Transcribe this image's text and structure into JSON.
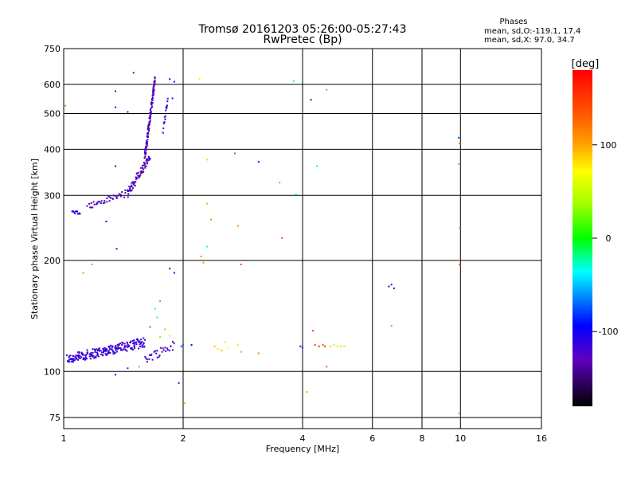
{
  "chart_data": {
    "type": "scatter",
    "title": "Tromsø 20161203 05:26:00-05:27:43",
    "subtitle": "RwPretec (Bp)",
    "stats": {
      "heading": "Phases",
      "line1": "mean, sd,O:-119.1, 17.4",
      "line2": "mean, sd,X:  97.0, 34.7"
    },
    "xlabel": "Frequency [MHz]",
    "ylabel": "Stationary phase Virtual Height [km]",
    "xscale": "log",
    "yscale": "log",
    "xlim": [
      1,
      16
    ],
    "ylim": [
      70,
      750
    ],
    "xticks": [
      1,
      2,
      4,
      6,
      8,
      10,
      16
    ],
    "xtick_labels": [
      "1",
      "2",
      "4",
      "6",
      "8",
      "10",
      "16"
    ],
    "yticks": [
      75,
      100,
      200,
      300,
      400,
      500,
      600,
      750
    ],
    "ytick_labels": [
      "75",
      "100",
      "200",
      "300",
      "400",
      "500",
      "600",
      "750"
    ],
    "grid": true,
    "colorbar": {
      "label": "[deg]",
      "range": [
        -180,
        180
      ],
      "ticks": [
        100,
        0,
        -100
      ],
      "tick_labels": [
        "100",
        "0",
        "-100"
      ]
    },
    "series": [
      {
        "marker": "dot",
        "traces": [
          {
            "x_start": 1.02,
            "x_end": 1.6,
            "y_start": 108,
            "y_end": 120,
            "n": 220,
            "phase": -115,
            "spread_y": 0.03
          },
          {
            "x_start": 1.6,
            "x_end": 1.9,
            "y_start": 108,
            "y_end": 118,
            "n": 30,
            "phase": -120,
            "spread_y": 0.03
          },
          {
            "x_start": 1.05,
            "x_end": 1.1,
            "y_start": 270,
            "y_end": 270,
            "n": 12,
            "phase": -110,
            "spread_y": 0.01
          },
          {
            "x_start": 1.15,
            "x_end": 1.45,
            "y_start": 280,
            "y_end": 305,
            "n": 40,
            "phase": -125,
            "spread_y": 0.02
          },
          {
            "x_start": 1.45,
            "x_end": 1.65,
            "y_start": 305,
            "y_end": 380,
            "n": 70,
            "phase": -130,
            "spread_y": 0.03
          },
          {
            "x_start": 1.6,
            "x_end": 1.7,
            "y_start": 380,
            "y_end": 620,
            "n": 120,
            "phase": -130,
            "spread_y": 0.03
          },
          {
            "x_start": 1.78,
            "x_end": 1.83,
            "y_start": 450,
            "y_end": 550,
            "n": 15,
            "phase": -120,
            "spread_y": 0.02
          }
        ],
        "points": [
          {
            "x": 1.35,
            "y": 575,
            "phase": -125
          },
          {
            "x": 1.35,
            "y": 520,
            "phase": -90
          },
          {
            "x": 1.45,
            "y": 505,
            "phase": -120
          },
          {
            "x": 1.35,
            "y": 360,
            "phase": -120
          },
          {
            "x": 1.36,
            "y": 215,
            "phase": -115
          },
          {
            "x": 1.28,
            "y": 255,
            "phase": -110
          },
          {
            "x": 1.5,
            "y": 645,
            "phase": -130
          },
          {
            "x": 1.85,
            "y": 620,
            "phase": -110
          },
          {
            "x": 1.9,
            "y": 610,
            "phase": -90
          },
          {
            "x": 1.88,
            "y": 550,
            "phase": -110
          },
          {
            "x": 1.18,
            "y": 195,
            "phase": 110
          },
          {
            "x": 1.12,
            "y": 185,
            "phase": 110
          },
          {
            "x": 1.01,
            "y": 525,
            "phase": 110
          },
          {
            "x": 1.85,
            "y": 190,
            "phase": -120
          },
          {
            "x": 1.9,
            "y": 185,
            "phase": -110
          },
          {
            "x": 1.75,
            "y": 155,
            "phase": -50
          },
          {
            "x": 1.7,
            "y": 148,
            "phase": -30
          },
          {
            "x": 1.72,
            "y": 140,
            "phase": -40
          },
          {
            "x": 1.65,
            "y": 132,
            "phase": -60
          },
          {
            "x": 1.8,
            "y": 130,
            "phase": 20
          },
          {
            "x": 1.85,
            "y": 125,
            "phase": 60
          },
          {
            "x": 1.75,
            "y": 124,
            "phase": 30
          },
          {
            "x": 1.95,
            "y": 93,
            "phase": -125
          },
          {
            "x": 1.35,
            "y": 98,
            "phase": -100
          },
          {
            "x": 1.45,
            "y": 102,
            "phase": -80
          },
          {
            "x": 1.55,
            "y": 103,
            "phase": 110
          },
          {
            "x": 1.98,
            "y": 117,
            "phase": -80
          },
          {
            "x": 2.0,
            "y": 118,
            "phase": -70
          },
          {
            "x": 2.02,
            "y": 82,
            "phase": 100
          },
          {
            "x": 2.1,
            "y": 118,
            "phase": -110
          },
          {
            "x": 2.2,
            "y": 620,
            "phase": 60
          },
          {
            "x": 2.22,
            "y": 205,
            "phase": 110
          },
          {
            "x": 2.25,
            "y": 197,
            "phase": 100
          },
          {
            "x": 2.3,
            "y": 375,
            "phase": 40
          },
          {
            "x": 2.3,
            "y": 285,
            "phase": 100
          },
          {
            "x": 2.35,
            "y": 258,
            "phase": 110
          },
          {
            "x": 2.3,
            "y": 218,
            "phase": -30
          },
          {
            "x": 2.4,
            "y": 117,
            "phase": 90
          },
          {
            "x": 2.45,
            "y": 115,
            "phase": 80
          },
          {
            "x": 2.5,
            "y": 114,
            "phase": 95
          },
          {
            "x": 2.55,
            "y": 120,
            "phase": 80
          },
          {
            "x": 2.6,
            "y": 116,
            "phase": 70
          },
          {
            "x": 2.75,
            "y": 118,
            "phase": 60
          },
          {
            "x": 2.8,
            "y": 113,
            "phase": 100
          },
          {
            "x": 2.7,
            "y": 390,
            "phase": -60
          },
          {
            "x": 2.75,
            "y": 248,
            "phase": 110
          },
          {
            "x": 2.8,
            "y": 195,
            "phase": 140
          },
          {
            "x": 3.1,
            "y": 370,
            "phase": -110
          },
          {
            "x": 3.1,
            "y": 112,
            "phase": 110
          },
          {
            "x": 3.5,
            "y": 325,
            "phase": 110
          },
          {
            "x": 3.55,
            "y": 230,
            "phase": 140
          },
          {
            "x": 3.8,
            "y": 612,
            "phase": -20
          },
          {
            "x": 3.85,
            "y": 302,
            "phase": -20
          },
          {
            "x": 3.95,
            "y": 117,
            "phase": -110
          },
          {
            "x": 4.0,
            "y": 116,
            "phase": -90
          },
          {
            "x": 4.1,
            "y": 88,
            "phase": 100
          },
          {
            "x": 4.2,
            "y": 545,
            "phase": -110
          },
          {
            "x": 4.25,
            "y": 129,
            "phase": 150
          },
          {
            "x": 4.3,
            "y": 118,
            "phase": 140
          },
          {
            "x": 4.35,
            "y": 360,
            "phase": -40
          },
          {
            "x": 4.4,
            "y": 117,
            "phase": 160
          },
          {
            "x": 4.5,
            "y": 118,
            "phase": 130
          },
          {
            "x": 4.55,
            "y": 117,
            "phase": 145
          },
          {
            "x": 4.6,
            "y": 580,
            "phase": 110
          },
          {
            "x": 4.6,
            "y": 103,
            "phase": 130
          },
          {
            "x": 4.7,
            "y": 117,
            "phase": 90
          },
          {
            "x": 4.8,
            "y": 118,
            "phase": 50
          },
          {
            "x": 4.9,
            "y": 117,
            "phase": 40
          },
          {
            "x": 5.0,
            "y": 117,
            "phase": 40
          },
          {
            "x": 5.1,
            "y": 117,
            "phase": 50
          },
          {
            "x": 6.6,
            "y": 170,
            "phase": -110
          },
          {
            "x": 6.7,
            "y": 172,
            "phase": -120
          },
          {
            "x": 6.8,
            "y": 168,
            "phase": -115
          },
          {
            "x": 6.7,
            "y": 133,
            "phase": 110
          },
          {
            "x": 9.9,
            "y": 430,
            "phase": -80
          },
          {
            "x": 9.95,
            "y": 415,
            "phase": 130
          },
          {
            "x": 9.9,
            "y": 365,
            "phase": 100
          },
          {
            "x": 9.95,
            "y": 245,
            "phase": 110
          },
          {
            "x": 9.9,
            "y": 200,
            "phase": 120
          },
          {
            "x": 9.95,
            "y": 195,
            "phase": 140
          },
          {
            "x": 9.9,
            "y": 77,
            "phase": 100
          }
        ]
      }
    ]
  }
}
